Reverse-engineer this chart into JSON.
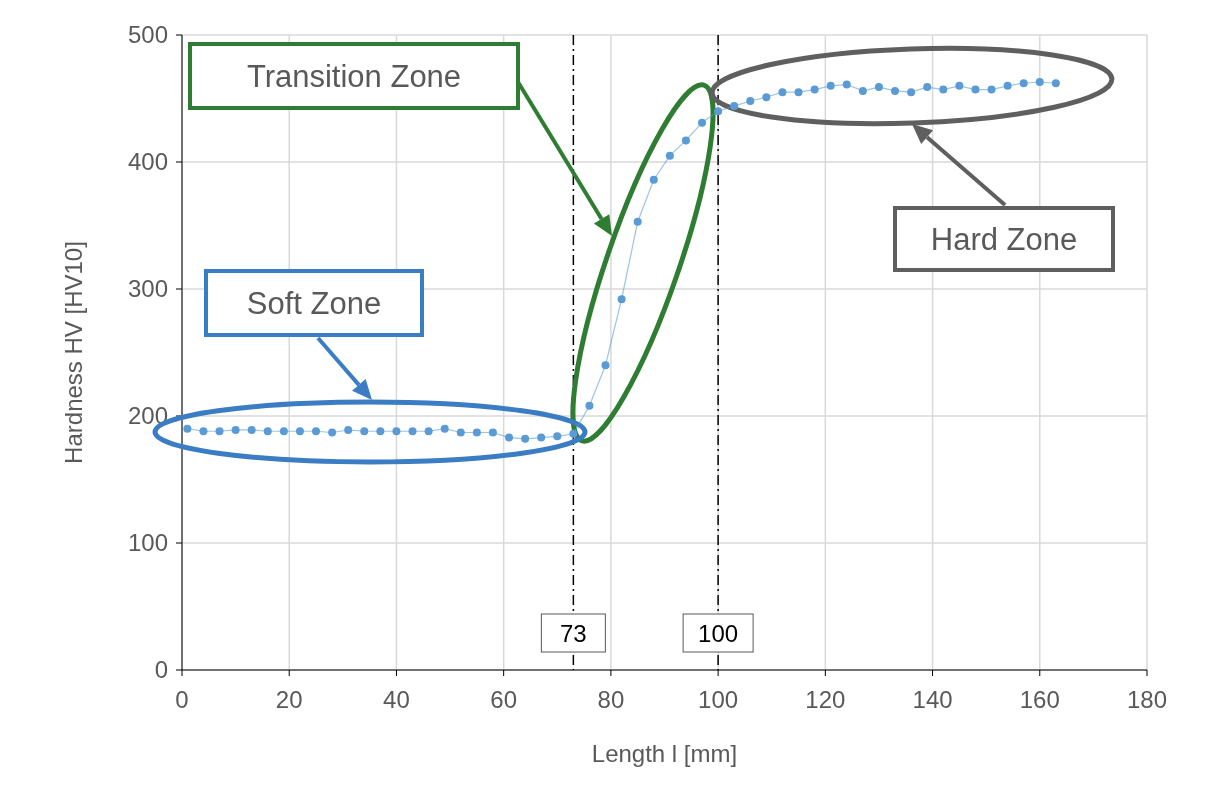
{
  "chart_data": {
    "type": "line",
    "xlabel": "Length l [mm]",
    "ylabel": "Hardness HV [HV10]",
    "x": [
      1,
      4,
      7,
      10,
      13,
      16,
      19,
      22,
      25,
      28,
      31,
      34,
      37,
      40,
      43,
      46,
      49,
      52,
      55,
      58,
      61,
      64,
      67,
      70,
      73,
      76,
      79,
      82,
      85,
      88,
      91,
      94,
      97,
      100,
      103,
      106,
      109,
      112,
      115,
      118,
      121,
      124,
      127,
      130,
      133,
      136,
      139,
      142,
      145,
      148,
      151,
      154,
      157,
      160,
      163
    ],
    "series": [
      {
        "color": "#5b9bd5",
        "values": [
          190,
          188,
          188,
          189,
          189,
          188,
          188,
          188,
          188,
          187,
          189,
          188,
          188,
          188,
          188,
          188,
          190,
          187,
          187,
          187,
          183,
          182,
          183,
          184,
          186,
          208,
          240,
          292,
          353,
          386,
          405,
          417,
          431,
          440,
          444,
          448,
          451,
          455,
          455,
          457,
          460,
          461,
          456,
          459,
          456,
          455,
          459,
          457,
          460,
          457,
          457,
          460,
          462,
          463,
          462
        ]
      }
    ],
    "xlim": [
      0,
      180
    ],
    "xticks": [
      0,
      20,
      40,
      60,
      80,
      100,
      120,
      140,
      160,
      180
    ],
    "ylim": [
      0,
      500
    ],
    "yticks": [
      0,
      100,
      200,
      300,
      400,
      500
    ],
    "grid": true,
    "marker": "circle",
    "line_style": "solid",
    "ref_lines": [
      {
        "axis": "x",
        "value": 73,
        "label": "73",
        "line_style": "dashdot",
        "color": "#000000"
      },
      {
        "axis": "x",
        "value": 100,
        "label": "100",
        "line_style": "dashdot",
        "color": "#000000"
      }
    ],
    "annotations": [
      "Transition Zone",
      "Soft Zone",
      "Hard Zone"
    ]
  }
}
